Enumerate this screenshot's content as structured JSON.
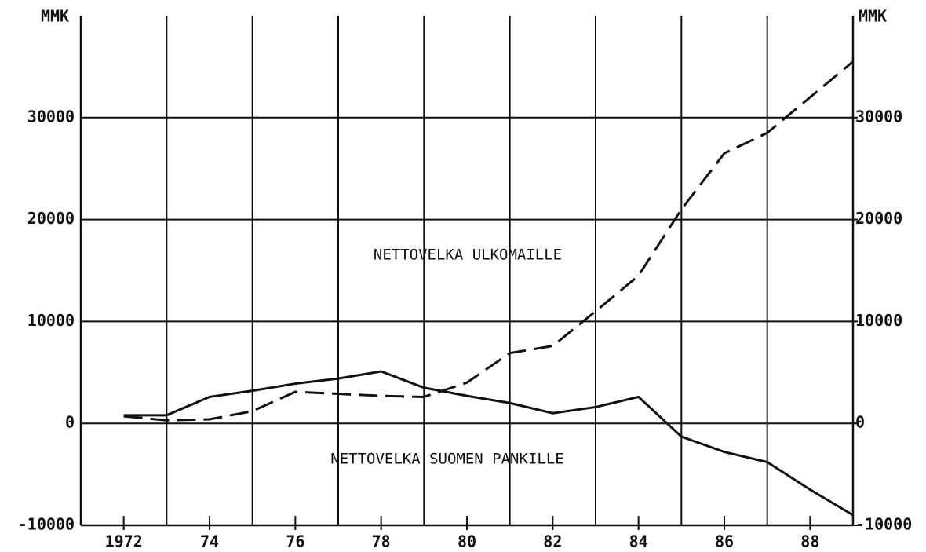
{
  "chart_data": {
    "type": "line",
    "y_label": "MMK",
    "y2_label": "MMK",
    "x": [
      1972,
      1973,
      1974,
      1975,
      1976,
      1977,
      1978,
      1979,
      1980,
      1981,
      1982,
      1983,
      1984,
      1985,
      1986,
      1987,
      1988,
      1989
    ],
    "series": [
      {
        "name": "NETTOVELKA SUOMEN PANKILLE",
        "color": "#111111",
        "dash": "solid",
        "values": [
          800,
          800,
          2600,
          3200,
          3900,
          4400,
          5100,
          3500,
          2700,
          2000,
          1000,
          1600,
          2600,
          -1300,
          -2800,
          -3800,
          -6500,
          -9000
        ]
      },
      {
        "name": "NETTOVELKA ULKOMAILLE",
        "color": "#111111",
        "dash": "dashed",
        "values": [
          700,
          300,
          400,
          1200,
          3100,
          2900,
          2700,
          2600,
          4000,
          6900,
          7600,
          11000,
          14500,
          21000,
          26500,
          28500,
          32000,
          35500
        ]
      }
    ],
    "xlim": [
      1971,
      1989
    ],
    "xticks": [
      {
        "value": 1972,
        "label": "1972"
      },
      {
        "value": 1974,
        "label": "74"
      },
      {
        "value": 1976,
        "label": "76"
      },
      {
        "value": 1978,
        "label": "78"
      },
      {
        "value": 1980,
        "label": "80"
      },
      {
        "value": 1982,
        "label": "82"
      },
      {
        "value": 1984,
        "label": "84"
      },
      {
        "value": 1986,
        "label": "86"
      },
      {
        "value": 1988,
        "label": "88"
      }
    ],
    "xgrid": [
      1973,
      1975,
      1977,
      1979,
      1981,
      1983,
      1985,
      1987
    ],
    "ylim": [
      -10000,
      40000
    ],
    "yticks": [
      -10000,
      0,
      10000,
      20000,
      30000
    ],
    "y2lim": [
      -10000,
      40000
    ],
    "y2ticks": [
      -10000,
      0,
      10000,
      20000,
      30000
    ],
    "grid": true
  }
}
